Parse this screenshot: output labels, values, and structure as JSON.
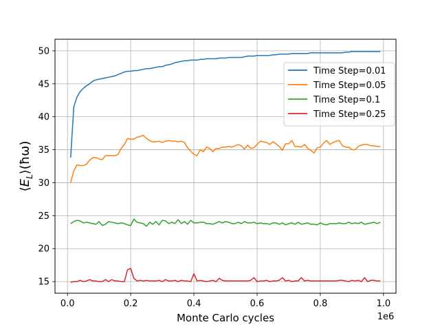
{
  "chart_data": {
    "type": "line",
    "xlabel": "Monte Carlo cycles",
    "ylabel": "⟨E_L⟩(ħω)",
    "ylabel_parts": {
      "open": "⟨",
      "E": "E",
      "sub": "L",
      "close": "⟩(ħω)"
    },
    "x_offset_label": "1e6",
    "xlim": [
      -0.0395,
      1.0395
    ],
    "ylim": [
      13.24,
      51.76
    ],
    "x_ticks": [
      0.0,
      0.2,
      0.4,
      0.6,
      0.8,
      1.0
    ],
    "x_tick_labels": [
      "0.0",
      "0.2",
      "0.4",
      "0.6",
      "0.8",
      "1.0"
    ],
    "y_ticks": [
      15,
      20,
      25,
      30,
      35,
      40,
      45,
      50
    ],
    "y_tick_labels": [
      "15",
      "20",
      "25",
      "30",
      "35",
      "40",
      "45",
      "50"
    ],
    "grid": true,
    "legend_position": "upper-right",
    "x": [
      0.01,
      0.02,
      0.03,
      0.04,
      0.05,
      0.06,
      0.07,
      0.08,
      0.09,
      0.1,
      0.11,
      0.12,
      0.13,
      0.14,
      0.15,
      0.16,
      0.17,
      0.18,
      0.19,
      0.2,
      0.21,
      0.22,
      0.23,
      0.24,
      0.25,
      0.26,
      0.27,
      0.28,
      0.29,
      0.3,
      0.31,
      0.32,
      0.33,
      0.34,
      0.35,
      0.36,
      0.37,
      0.38,
      0.39,
      0.4,
      0.41,
      0.42,
      0.43,
      0.44,
      0.45,
      0.46,
      0.47,
      0.48,
      0.49,
      0.5,
      0.51,
      0.52,
      0.53,
      0.54,
      0.55,
      0.56,
      0.57,
      0.58,
      0.59,
      0.6,
      0.61,
      0.62,
      0.63,
      0.64,
      0.65,
      0.66,
      0.67,
      0.68,
      0.69,
      0.7,
      0.71,
      0.72,
      0.73,
      0.74,
      0.75,
      0.76,
      0.77,
      0.78,
      0.79,
      0.8,
      0.81,
      0.82,
      0.83,
      0.84,
      0.85,
      0.86,
      0.87,
      0.88,
      0.89,
      0.9,
      0.91,
      0.92,
      0.93,
      0.94,
      0.95,
      0.96,
      0.97,
      0.98,
      0.99
    ],
    "series": [
      {
        "name": "Time Step=0.01",
        "color": "#1f77b4",
        "values": [
          33.8,
          41.5,
          43.0,
          43.8,
          44.3,
          44.7,
          45.0,
          45.4,
          45.6,
          45.7,
          45.8,
          45.9,
          46.0,
          46.1,
          46.2,
          46.4,
          46.6,
          46.8,
          46.9,
          46.9,
          47.0,
          47.0,
          47.1,
          47.2,
          47.3,
          47.3,
          47.4,
          47.5,
          47.6,
          47.6,
          47.8,
          47.9,
          48.0,
          48.2,
          48.3,
          48.4,
          48.5,
          48.5,
          48.6,
          48.6,
          48.6,
          48.7,
          48.7,
          48.8,
          48.8,
          48.8,
          48.8,
          48.9,
          48.9,
          48.9,
          49.0,
          49.0,
          49.0,
          49.0,
          49.0,
          49.1,
          49.2,
          49.2,
          49.2,
          49.3,
          49.3,
          49.3,
          49.3,
          49.3,
          49.4,
          49.4,
          49.5,
          49.5,
          49.5,
          49.5,
          49.6,
          49.6,
          49.6,
          49.6,
          49.6,
          49.6,
          49.7,
          49.7,
          49.7,
          49.7,
          49.7,
          49.7,
          49.7,
          49.7,
          49.7,
          49.7,
          49.7,
          49.8,
          49.8,
          49.9,
          49.9,
          49.9,
          49.9,
          49.9,
          49.9,
          49.9,
          49.9,
          49.9,
          49.9
        ]
      },
      {
        "name": "Time Step=0.05",
        "color": "#ff7f0e",
        "values": [
          30.0,
          31.8,
          32.7,
          32.6,
          32.6,
          32.8,
          33.4,
          33.8,
          33.8,
          33.6,
          33.5,
          34.1,
          34.1,
          34.1,
          34.1,
          34.3,
          35.2,
          35.8,
          36.7,
          36.6,
          36.6,
          36.9,
          37.0,
          37.2,
          36.7,
          36.4,
          36.2,
          36.2,
          36.3,
          36.1,
          36.3,
          36.4,
          36.3,
          36.3,
          36.2,
          36.3,
          36.1,
          35.3,
          34.8,
          34.3,
          34.1,
          35.0,
          34.7,
          35.4,
          35.2,
          34.7,
          35.2,
          35.2,
          35.4,
          35.4,
          35.5,
          35.4,
          35.6,
          35.8,
          35.6,
          35.1,
          35.7,
          35.2,
          35.3,
          35.8,
          36.3,
          36.2,
          36.1,
          35.8,
          36.2,
          35.9,
          35.5,
          34.9,
          35.9,
          35.9,
          36.4,
          35.5,
          35.5,
          35.4,
          35.8,
          35.2,
          34.9,
          34.5,
          35.3,
          35.4,
          36.0,
          36.4,
          35.8,
          36.1,
          36.3,
          36.4,
          35.6,
          35.4,
          35.4,
          35.0,
          35.0,
          35.5,
          35.7,
          35.8,
          35.8,
          35.6,
          35.6,
          35.5,
          35.5
        ]
      },
      {
        "name": "Time Step=0.1",
        "color": "#2ca02c",
        "values": [
          23.8,
          24.1,
          24.3,
          24.2,
          23.9,
          24.0,
          23.9,
          23.8,
          23.7,
          24.1,
          23.5,
          23.7,
          24.1,
          24.0,
          23.9,
          23.8,
          23.9,
          23.8,
          23.6,
          23.5,
          24.5,
          24.0,
          23.9,
          23.8,
          23.4,
          24.0,
          23.7,
          24.1,
          23.6,
          24.3,
          24.2,
          23.8,
          24.0,
          23.8,
          24.4,
          23.8,
          24.1,
          23.7,
          24.3,
          23.9,
          23.9,
          24.0,
          24.0,
          23.8,
          23.8,
          23.7,
          23.9,
          24.1,
          23.9,
          24.1,
          24.0,
          23.8,
          23.8,
          24.0,
          23.8,
          24.1,
          23.9,
          23.9,
          24.0,
          23.8,
          23.9,
          23.8,
          23.8,
          23.7,
          23.9,
          23.9,
          23.7,
          23.9,
          23.6,
          23.8,
          23.9,
          23.7,
          24.0,
          23.7,
          23.8,
          23.9,
          23.7,
          23.7,
          23.6,
          23.9,
          23.7,
          23.6,
          23.8,
          23.8,
          23.8,
          23.9,
          23.8,
          23.8,
          24.0,
          23.8,
          23.9,
          23.8,
          24.0,
          23.7,
          23.8,
          23.9,
          24.0,
          23.8,
          24.0
        ]
      },
      {
        "name": "Time Step=0.25",
        "color": "#d62728",
        "values": [
          14.9,
          15.0,
          15.0,
          15.2,
          15.0,
          15.1,
          15.3,
          15.1,
          15.1,
          15.0,
          15.0,
          15.3,
          15.0,
          15.3,
          15.1,
          15.1,
          15.0,
          15.0,
          16.8,
          17.0,
          15.5,
          15.1,
          15.2,
          15.1,
          15.2,
          15.1,
          15.1,
          15.1,
          15.2,
          15.0,
          15.3,
          15.1,
          15.1,
          15.2,
          15.0,
          15.2,
          15.1,
          15.1,
          15.0,
          16.2,
          15.1,
          15.2,
          15.1,
          15.0,
          15.1,
          15.2,
          15.0,
          15.5,
          15.2,
          15.1,
          15.1,
          15.1,
          15.1,
          15.1,
          15.1,
          15.1,
          15.1,
          15.2,
          15.6,
          15.0,
          15.1,
          15.1,
          15.2,
          15.0,
          15.1,
          15.1,
          15.2,
          15.6,
          15.1,
          15.2,
          15.0,
          15.1,
          15.1,
          15.6,
          15.1,
          15.2,
          15.1,
          15.1,
          15.1,
          15.1,
          15.1,
          15.1,
          15.1,
          15.1,
          15.1,
          15.2,
          15.2,
          15.1,
          15.0,
          15.2,
          15.1,
          15.2,
          15.0,
          15.6,
          15.0,
          15.2,
          15.2,
          15.1,
          15.1
        ]
      }
    ]
  }
}
